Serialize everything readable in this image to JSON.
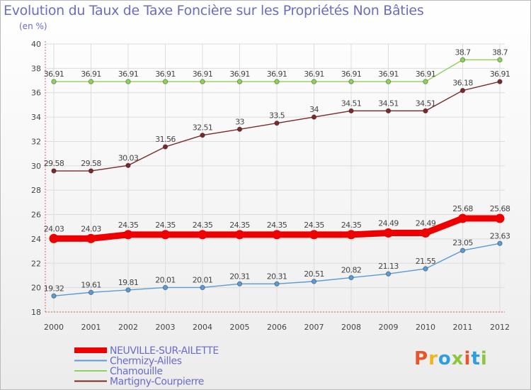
{
  "chart_data": {
    "type": "line",
    "title": "Evolution du Taux de Taxe Foncière sur les Propriétés Non Bâties",
    "ylabel": "(en %)",
    "x": [
      "2000",
      "2001",
      "2002",
      "2003",
      "2004",
      "2005",
      "2006",
      "2007",
      "2008",
      "2009",
      "2010",
      "2011",
      "2012"
    ],
    "ylim": [
      18,
      40
    ],
    "yticks": [
      18,
      20,
      22,
      24,
      26,
      28,
      30,
      32,
      34,
      36,
      38,
      40
    ],
    "grid": true,
    "legend_position": "bottom-left",
    "series": [
      {
        "name": "NEUVILLE-SUR-AILETTE",
        "color": "#ee0000",
        "emphasis": true,
        "values": [
          24.03,
          24.03,
          24.35,
          24.35,
          24.35,
          24.35,
          24.35,
          24.35,
          24.35,
          24.49,
          24.49,
          25.68,
          25.68
        ],
        "labels": [
          "24.03",
          "24.03",
          "24.35",
          "24.35",
          "24.35",
          "24.35",
          "24.35",
          "24.35",
          "24.35",
          "24.49",
          "24.49",
          "25.68",
          "25.68"
        ]
      },
      {
        "name": "Chermizy-Ailles",
        "color": "#5b9bd5",
        "values": [
          19.32,
          19.61,
          19.81,
          20.01,
          20.01,
          20.31,
          20.31,
          20.51,
          20.82,
          21.13,
          21.55,
          23.05,
          23.63
        ],
        "labels": [
          "19.32",
          "19.61",
          "19.81",
          "20.01",
          "20.01",
          "20.31",
          "20.31",
          "20.51",
          "20.82",
          "21.13",
          "21.55",
          "23.05",
          "23.63"
        ]
      },
      {
        "name": "Chamouille",
        "color": "#8cd35a",
        "values": [
          36.91,
          36.91,
          36.91,
          36.91,
          36.91,
          36.91,
          36.91,
          36.91,
          36.91,
          36.91,
          36.91,
          38.7,
          38.7
        ],
        "labels": [
          "36.91",
          "36.91",
          "36.91",
          "36.91",
          "36.91",
          "36.91",
          "36.91",
          "36.91",
          "36.91",
          "36.91",
          "36.91",
          "38.7",
          "38.7"
        ]
      },
      {
        "name": "Martigny-Courpierre",
        "color": "#7a2a2a",
        "values": [
          29.58,
          29.58,
          30.03,
          31.56,
          32.51,
          33,
          33.5,
          34,
          34.51,
          34.51,
          34.51,
          36.18,
          36.91
        ],
        "labels": [
          "29.58",
          "29.58",
          "30.03",
          "31.56",
          "32.51",
          "33",
          "33.5",
          "34",
          "34.51",
          "34.51",
          "34.51",
          "36.18",
          "36.91"
        ]
      }
    ]
  },
  "logo": {
    "text": "Proxiti",
    "colors": [
      "#e8552a",
      "#f2b31c",
      "#2f9fdb",
      "#8cc63f",
      "#e8552a",
      "#2f9fdb",
      "#8cc63f"
    ]
  }
}
